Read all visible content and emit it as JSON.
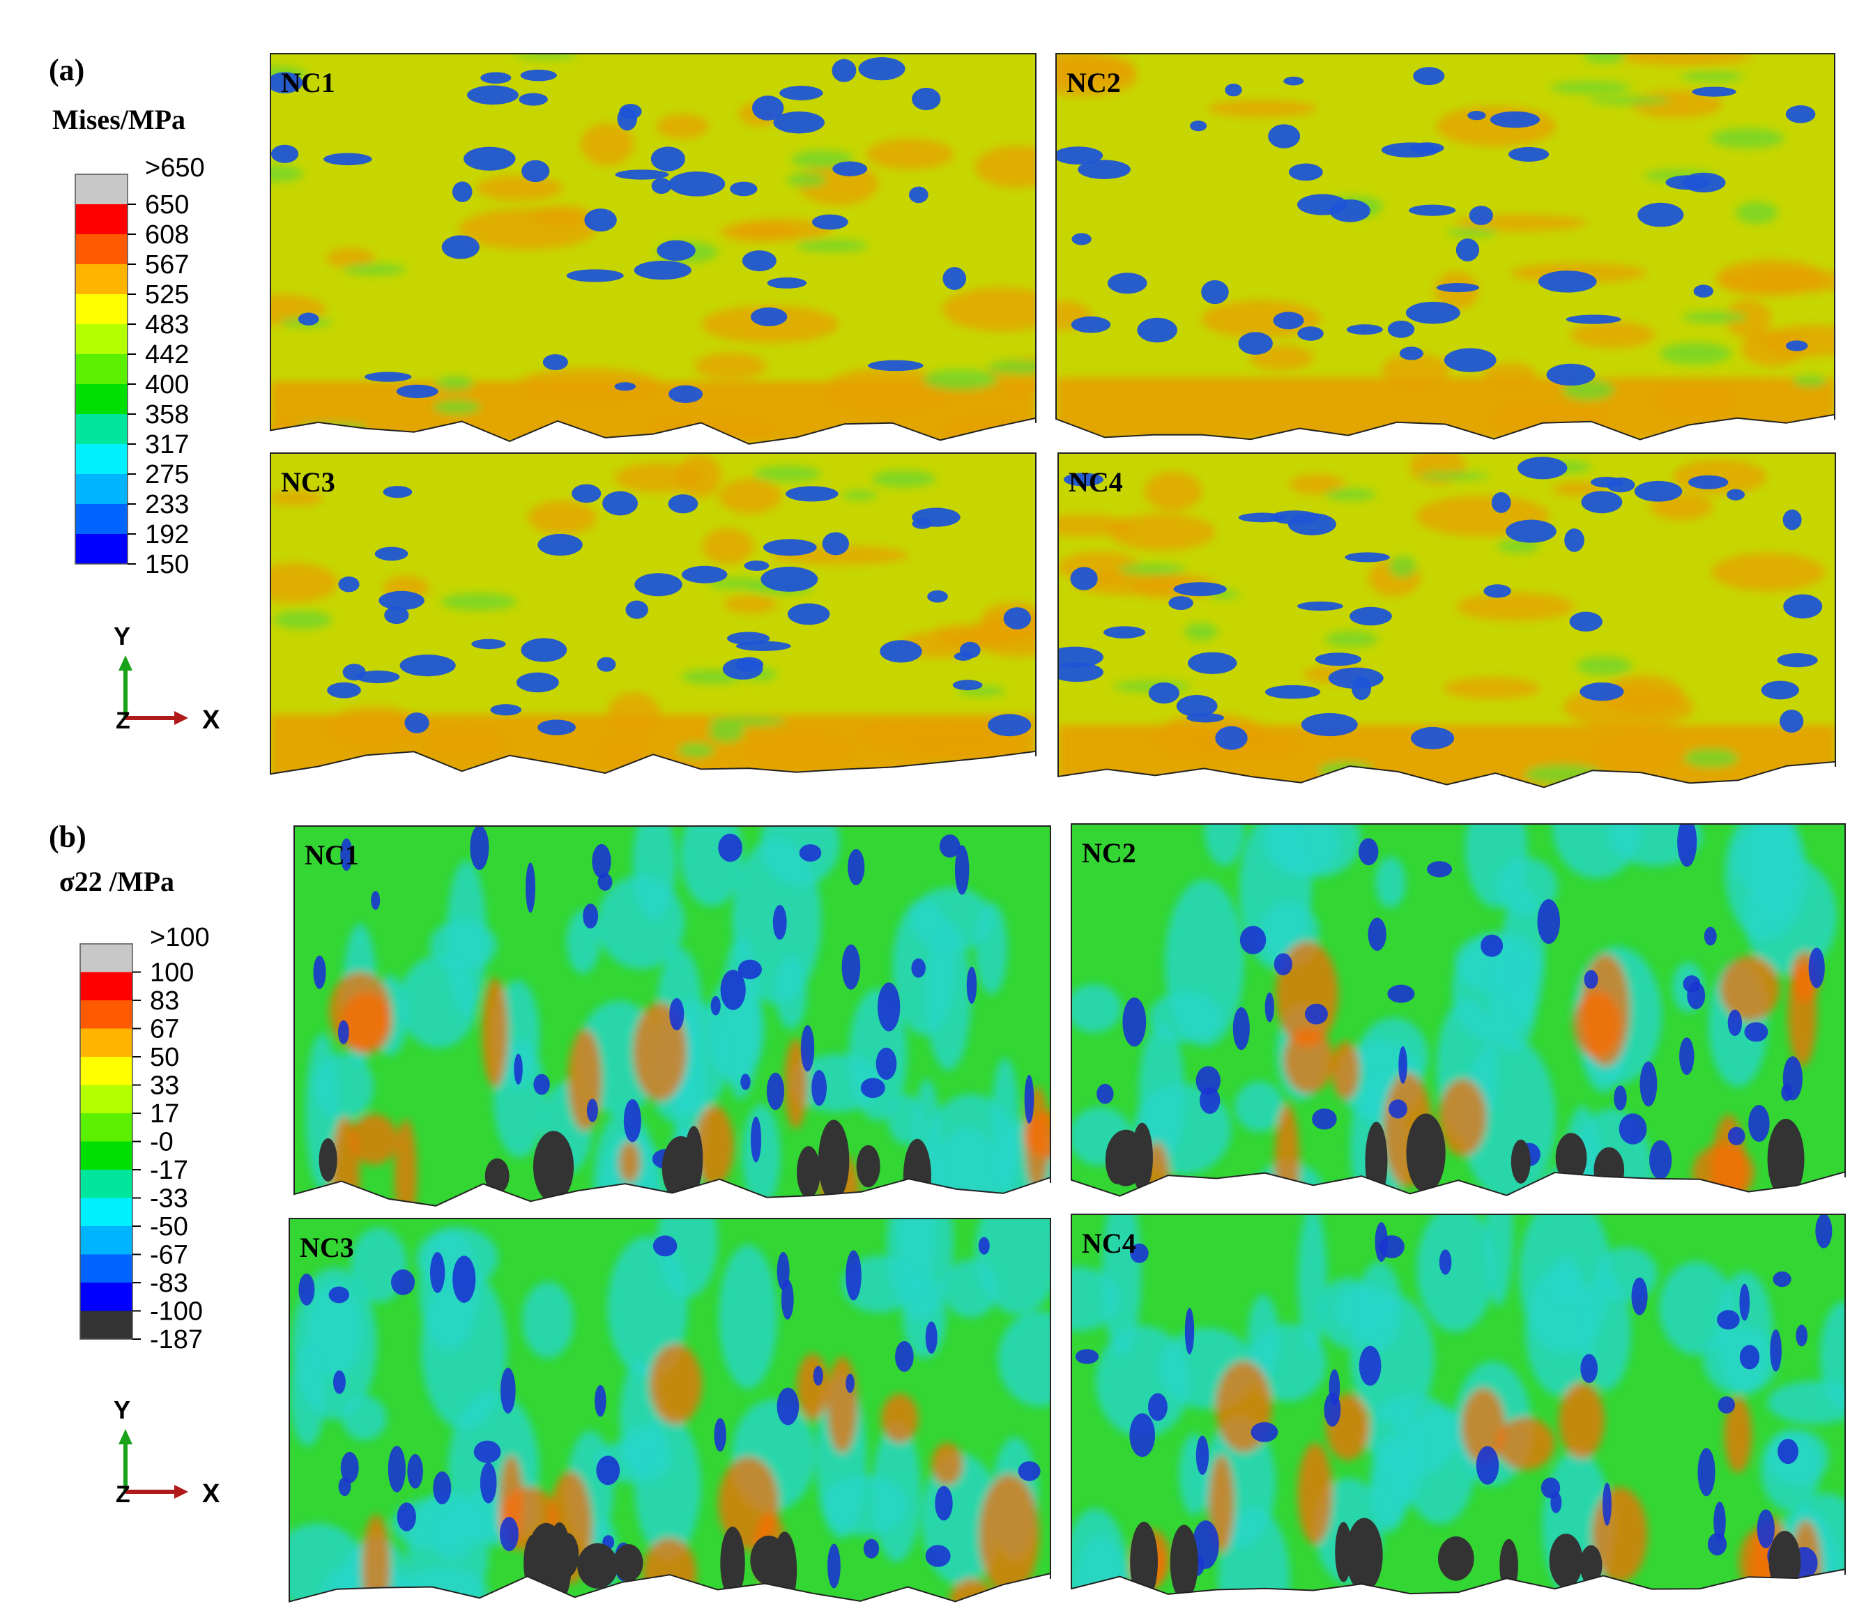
{
  "panel_a": {
    "label": "(a)",
    "legend_title": "Mises/MPa",
    "legend_values": [
      ">650",
      "650",
      "608",
      "567",
      "525",
      "483",
      "442",
      "400",
      "358",
      "317",
      "275",
      "233",
      "192",
      "150"
    ],
    "legend_colors": [
      "#c8c8c8",
      "#ff0000",
      "#ff5a00",
      "#ffb400",
      "#ffff00",
      "#b4ff00",
      "#5af000",
      "#00e000",
      "#00e69b",
      "#00f0ff",
      "#00b4ff",
      "#0064ff",
      "#0000ff"
    ],
    "dominant_color": "#c7d600",
    "ridge_color": "#e6a000",
    "pore_color": "#1f55d6",
    "panels": [
      {
        "name": "NC1"
      },
      {
        "name": "NC2"
      },
      {
        "name": "NC3"
      },
      {
        "name": "NC4"
      }
    ]
  },
  "panel_b": {
    "label": "(b)",
    "legend_title": "σ22 /MPa",
    "legend_values": [
      ">100",
      "100",
      "83",
      "67",
      "50",
      "33",
      "17",
      "-0",
      "-17",
      "-33",
      "-50",
      "-67",
      "-83",
      "-100",
      "-187"
    ],
    "legend_colors": [
      "#c8c8c8",
      "#ff0000",
      "#ff5a00",
      "#ffb400",
      "#ffff00",
      "#b4ff00",
      "#5af000",
      "#00e000",
      "#00e69b",
      "#00f0ff",
      "#00b4ff",
      "#0064ff",
      "#0000ff",
      "#333333"
    ],
    "dominant_color": "#33d633",
    "secondary_color": "#26d6c8",
    "pore_color": "#1a35d0",
    "panels": [
      {
        "name": "NC1"
      },
      {
        "name": "NC2"
      },
      {
        "name": "NC3"
      },
      {
        "name": "NC4"
      }
    ]
  },
  "axes_triad": {
    "y_label": "Y",
    "x_label": "X",
    "z_label": "Z"
  }
}
